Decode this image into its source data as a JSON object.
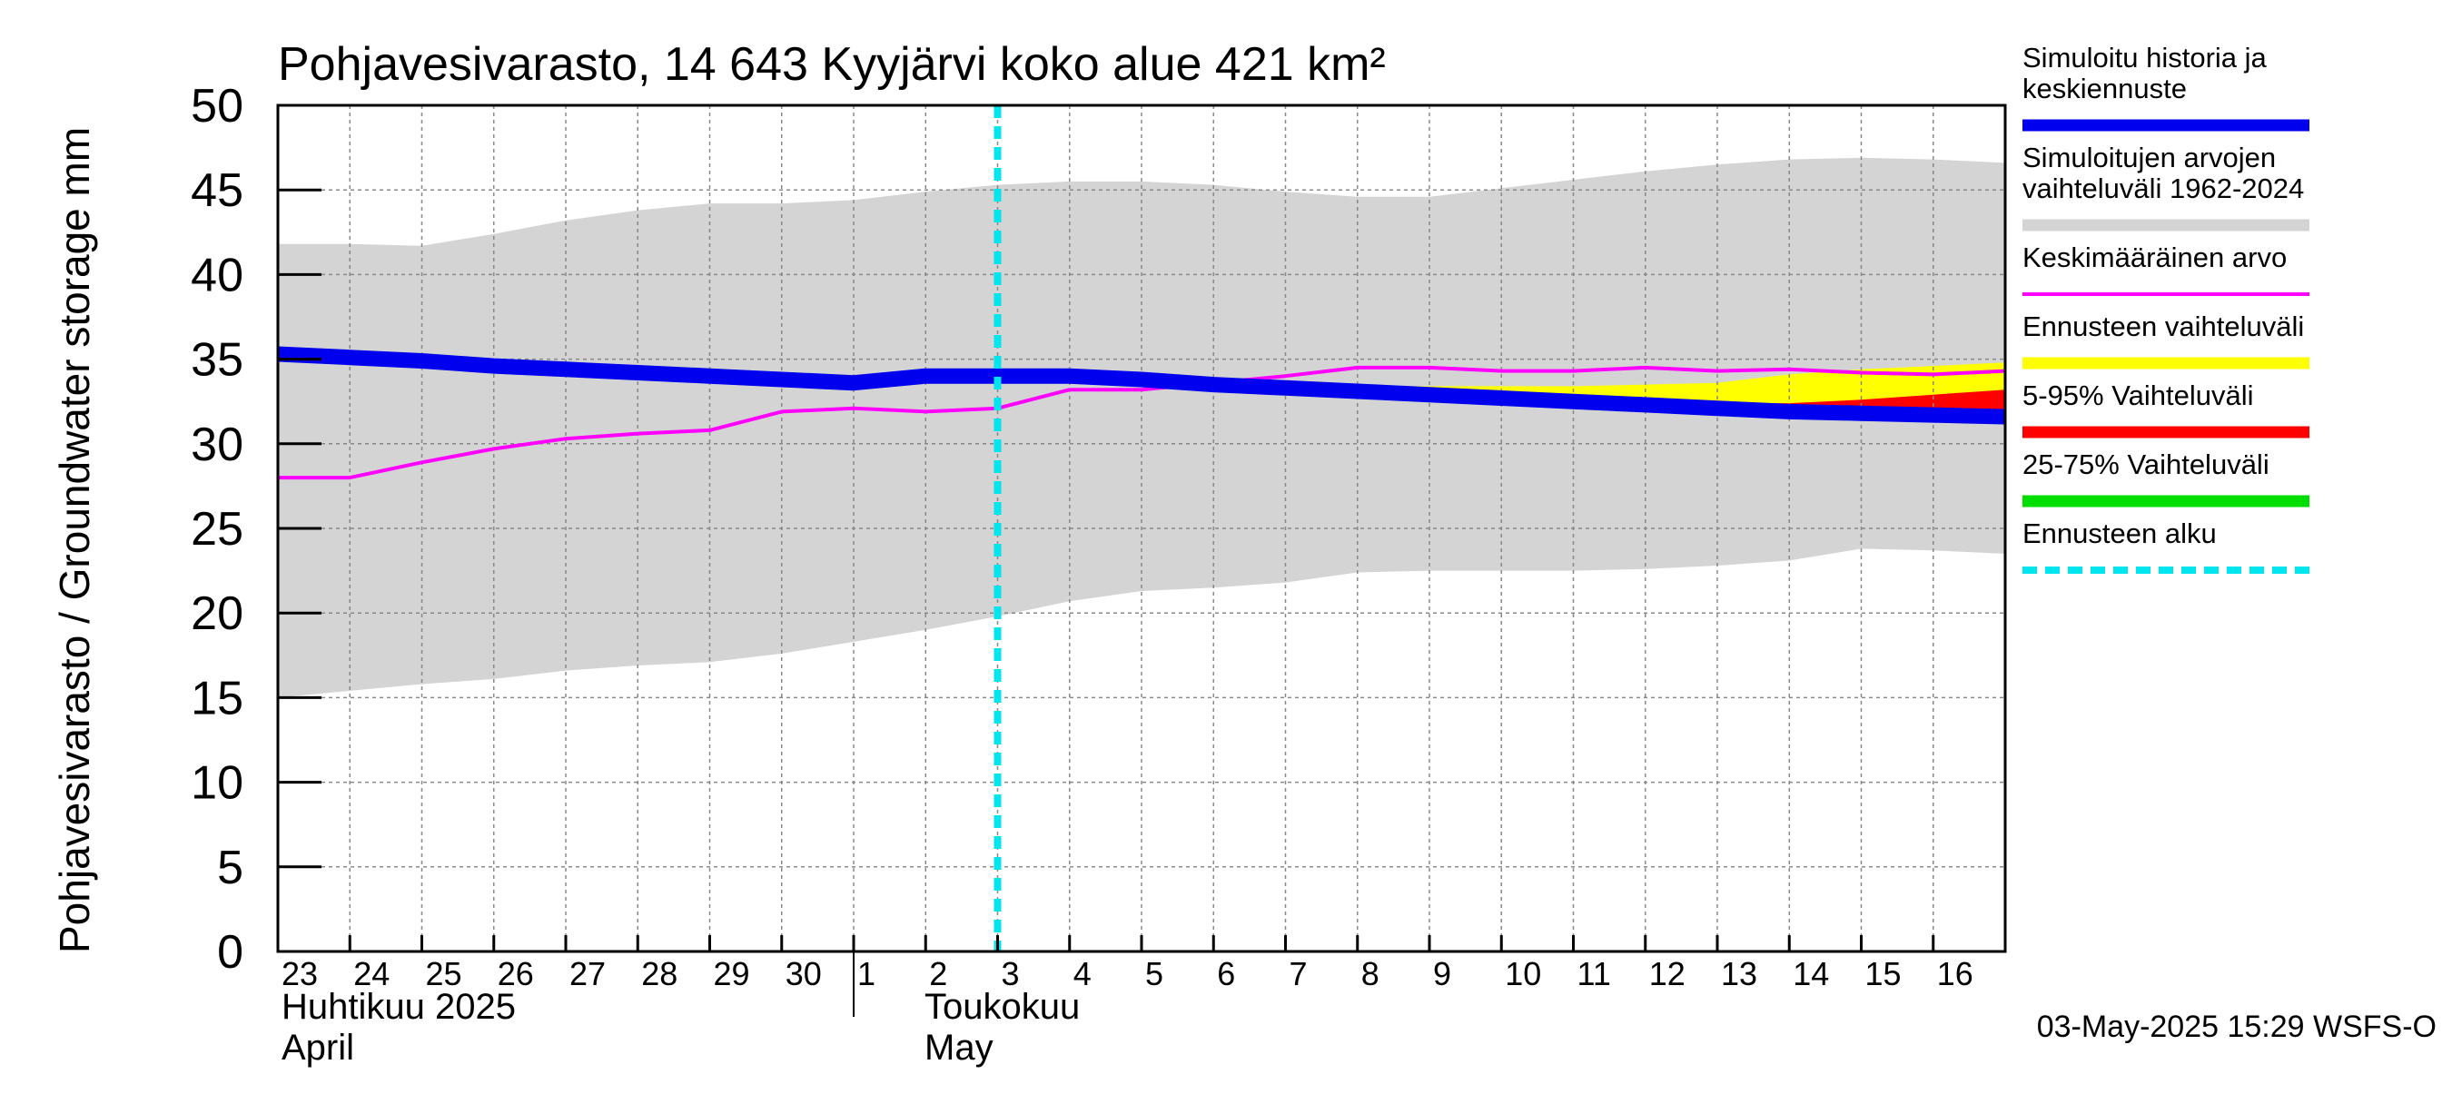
{
  "chart_data": {
    "type": "area",
    "title": "Pohjavesivarasto, 14 643 Kyyjärvi koko alue 421 km²",
    "ylabel": "Pohjavesivarasto / Groundwater storage   mm",
    "ylim": [
      0,
      50
    ],
    "yticks": [
      "0",
      "5",
      "10",
      "15",
      "20",
      "25",
      "30",
      "35",
      "40",
      "45",
      "50"
    ],
    "grid": true,
    "legend_position": "right",
    "x_days": [
      "23",
      "24",
      "25",
      "26",
      "27",
      "28",
      "29",
      "30",
      "1",
      "2",
      "3",
      "4",
      "5",
      "6",
      "7",
      "8",
      "9",
      "10",
      "11",
      "12",
      "13",
      "14",
      "15",
      "16"
    ],
    "month_labels": [
      {
        "fi": "Huhtikuu  2025",
        "en": "April"
      },
      {
        "fi": "Toukokuu",
        "en": "May"
      }
    ],
    "timestamp": "03-May-2025 15:29 WSFS-O",
    "colors": {
      "history": "#0000ee",
      "range": "#d4d4d4",
      "mean": "#ff00ff",
      "forecast_range": "#ffff00",
      "p5_95": "#ff0000",
      "p25_75": "#00dd00",
      "forecast_start": "#00e5ee",
      "grid": "#888888"
    },
    "legend": [
      {
        "label": "Simuloitu historia ja keskiennuste",
        "color": "#0000ee",
        "style": "thick"
      },
      {
        "label": "Simuloitujen arvojen vaihteluväli 1962-2024",
        "color": "#d4d4d4",
        "style": "thick"
      },
      {
        "label": "Keskimääräinen arvo",
        "color": "#ff00ff",
        "style": "thin"
      },
      {
        "label": "Ennusteen vaihteluväli",
        "color": "#ffff00",
        "style": "thick"
      },
      {
        "label": "5-95% Vaihteluväli",
        "color": "#ff0000",
        "style": "thick"
      },
      {
        "label": "25-75% Vaihteluväli",
        "color": "#00dd00",
        "style": "thick"
      },
      {
        "label": "Ennusteen alku",
        "color": "#00e5ee",
        "style": "dashed"
      }
    ],
    "forecast_start_x": 10,
    "series": [
      {
        "name": "Simuloitu historia ja keskiennuste",
        "x": [
          0,
          1,
          2,
          3,
          4,
          5,
          6,
          7,
          8,
          9,
          10,
          11,
          12,
          13,
          14,
          15,
          16,
          17,
          18,
          19,
          20,
          21,
          22,
          23,
          24
        ],
        "values": [
          35.3,
          35.1,
          34.9,
          34.6,
          34.4,
          34.2,
          34.0,
          33.8,
          33.6,
          34.0,
          34.0,
          34.0,
          33.8,
          33.5,
          33.3,
          33.1,
          32.9,
          32.7,
          32.5,
          32.3,
          32.1,
          31.9,
          31.8,
          31.7,
          31.6
        ]
      },
      {
        "name": "Keskimääräinen arvo",
        "x": [
          0,
          1,
          2,
          3,
          4,
          5,
          6,
          7,
          8,
          9,
          10,
          11,
          12,
          13,
          14,
          15,
          16,
          17,
          18,
          19,
          20,
          21,
          22,
          23,
          24
        ],
        "values": [
          28.0,
          28.0,
          28.9,
          29.7,
          30.3,
          30.6,
          30.8,
          31.9,
          32.1,
          31.9,
          32.1,
          33.2,
          33.2,
          33.6,
          34.0,
          34.5,
          34.5,
          34.3,
          34.3,
          34.5,
          34.3,
          34.4,
          34.2,
          34.1,
          34.3
        ]
      },
      {
        "name": "Simuloitujen arvojen vaihteluväli 1962-2024",
        "x": [
          0,
          1,
          2,
          3,
          4,
          5,
          6,
          7,
          8,
          9,
          10,
          11,
          12,
          13,
          14,
          15,
          16,
          17,
          18,
          19,
          20,
          21,
          22,
          23,
          24
        ],
        "upper": [
          41.8,
          41.8,
          41.7,
          42.4,
          43.2,
          43.8,
          44.2,
          44.2,
          44.4,
          44.9,
          45.3,
          45.5,
          45.5,
          45.3,
          44.9,
          44.6,
          44.6,
          45.1,
          45.6,
          46.1,
          46.5,
          46.8,
          46.9,
          46.8,
          46.6
        ],
        "lower": [
          15.0,
          15.4,
          15.8,
          16.1,
          16.6,
          16.9,
          17.1,
          17.6,
          18.3,
          19.0,
          19.8,
          20.7,
          21.3,
          21.5,
          21.8,
          22.4,
          22.5,
          22.5,
          22.5,
          22.6,
          22.8,
          23.1,
          23.8,
          23.7,
          23.5
        ]
      },
      {
        "name": "Ennusteen vaihteluväli",
        "x": [
          10,
          11,
          12,
          13,
          14,
          15,
          16,
          17,
          18,
          19,
          20,
          21,
          22,
          23,
          24
        ],
        "upper": [
          34.0,
          34.0,
          33.9,
          33.7,
          33.5,
          33.4,
          33.4,
          33.4,
          33.4,
          33.5,
          33.6,
          34.1,
          34.4,
          34.6,
          34.8
        ],
        "lower": [
          34.0,
          34.0,
          33.8,
          33.5,
          33.3,
          33.1,
          32.9,
          32.7,
          32.5,
          32.2,
          32.0,
          31.8,
          31.6,
          31.4,
          31.2
        ]
      },
      {
        "name": "5-95% Vaihteluväli",
        "x": [
          10,
          11,
          12,
          13,
          14,
          15,
          16,
          17,
          18,
          19,
          20,
          21,
          22,
          23,
          24
        ],
        "upper": [
          34.0,
          34.0,
          33.8,
          33.5,
          33.3,
          33.1,
          32.9,
          32.7,
          32.6,
          32.5,
          32.4,
          32.4,
          32.6,
          32.9,
          33.2
        ],
        "lower": [
          34.0,
          34.0,
          33.8,
          33.5,
          33.3,
          33.1,
          32.9,
          32.7,
          32.5,
          32.2,
          32.0,
          31.8,
          31.6,
          31.4,
          31.2
        ]
      },
      {
        "name": "25-75% Vaihteluväli",
        "x": [
          10,
          11,
          12,
          13,
          14,
          15,
          16,
          17,
          18,
          19,
          20,
          21,
          22,
          23,
          24
        ],
        "upper": [
          34.0,
          34.0,
          33.8,
          33.5,
          33.3,
          33.1,
          32.9,
          32.7,
          32.5,
          32.3,
          32.1,
          31.9,
          31.9,
          31.9,
          31.9
        ],
        "lower": [
          34.0,
          34.0,
          33.8,
          33.5,
          33.3,
          33.1,
          32.9,
          32.7,
          32.5,
          32.3,
          32.1,
          31.9,
          31.7,
          31.5,
          31.3
        ]
      }
    ]
  }
}
